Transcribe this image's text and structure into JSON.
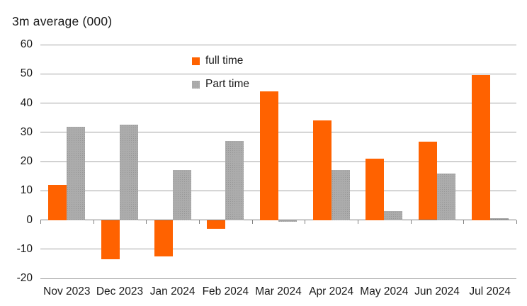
{
  "title": "3m average (000)",
  "colors": {
    "full_time": "#FF6200",
    "part_time": "#ACACAC",
    "part_time_dot": "#969696",
    "gridline": "#A3A3A3",
    "zero_line": "#808080",
    "text": "#1A1A1A",
    "background": "#FFFFFF"
  },
  "legend": {
    "items": [
      {
        "label": "full time",
        "style": "solid-orange"
      },
      {
        "label": "Part time",
        "style": "dotted-gray"
      }
    ]
  },
  "chart_data": {
    "type": "bar",
    "title": "3m average (000)",
    "xlabel": "",
    "ylabel": "",
    "categories": [
      "Nov 2023",
      "Dec 2023",
      "Jan 2024",
      "Feb 2024",
      "Mar 2024",
      "Apr 2024",
      "May 2024",
      "Jun 2024",
      "Jul 2024"
    ],
    "series": [
      {
        "name": "full time",
        "color": "#FF6200",
        "values": [
          12,
          -13.5,
          -12.5,
          -3,
          44,
          34,
          21,
          26.7,
          49.5
        ]
      },
      {
        "name": "Part time",
        "color": "#ACACAC",
        "values": [
          32,
          32.5,
          17,
          27,
          -0.6,
          17,
          3,
          16,
          0.7
        ]
      }
    ],
    "ylim": [
      -20,
      60
    ],
    "yticks": [
      60,
      50,
      40,
      30,
      20,
      10,
      0,
      -10,
      -20
    ],
    "grid": true,
    "legend_position": "inside-top-center"
  }
}
